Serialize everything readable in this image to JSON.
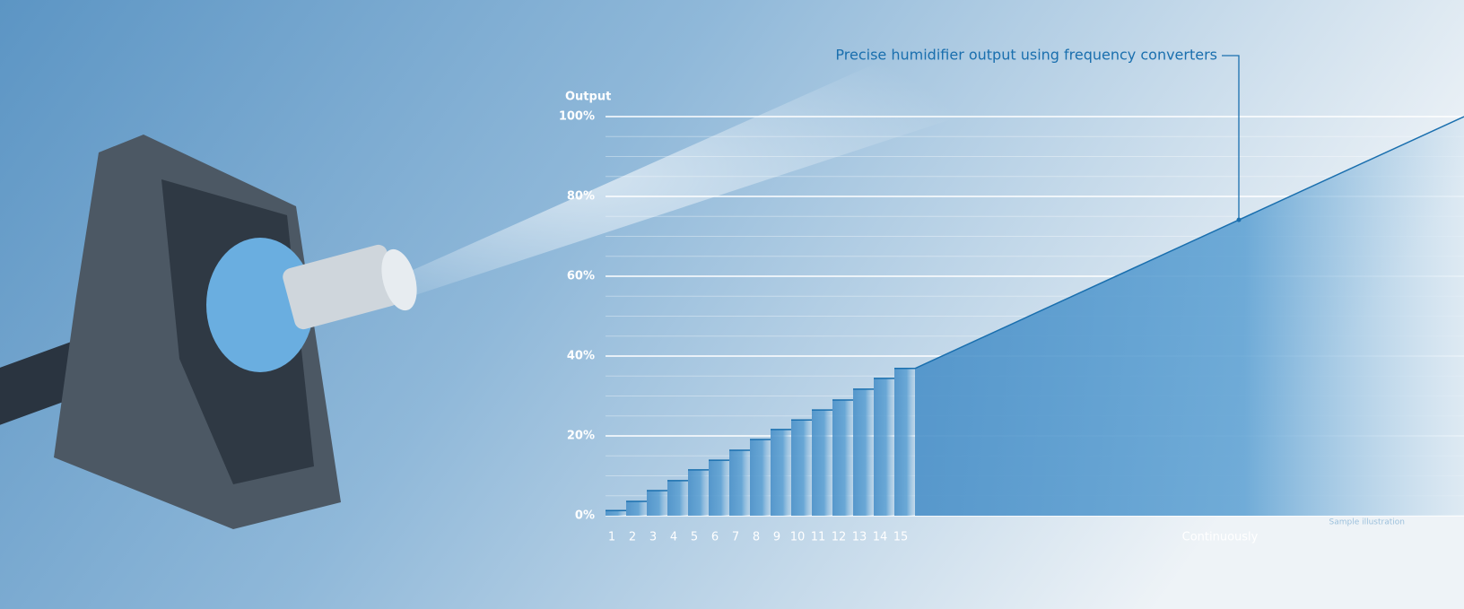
{
  "chart_data": {
    "type": "step",
    "title": "Precise humidifier output using frequency converters",
    "y_label": "Output",
    "note": "Sample illustration",
    "categories": [
      "1",
      "2",
      "3",
      "4",
      "5",
      "6",
      "7",
      "8",
      "9",
      "10",
      "11",
      "12",
      "13",
      "14",
      "15"
    ],
    "values": [
      1.3,
      3.6,
      6.3,
      8.8,
      11.5,
      13.9,
      16.4,
      19.1,
      21.6,
      24.0,
      26.5,
      29.0,
      31.7,
      34.4,
      36.9
    ],
    "continuous": {
      "label": "Continuously",
      "values": [
        36.9,
        100
      ]
    },
    "color": "#1a6fae",
    "ylim": [
      0,
      100
    ],
    "yticks": [
      {
        "value": 0,
        "label": "0%"
      },
      {
        "value": 20,
        "label": "20%"
      },
      {
        "value": 40,
        "label": "40%"
      },
      {
        "value": 60,
        "label": "60%"
      },
      {
        "value": 80,
        "label": "80%"
      },
      {
        "value": 100,
        "label": "100%"
      }
    ],
    "minor_yticks": [
      5,
      10,
      15,
      25,
      30,
      35,
      45,
      50,
      55,
      65,
      70,
      75,
      85,
      90,
      95
    ],
    "grid": true
  }
}
